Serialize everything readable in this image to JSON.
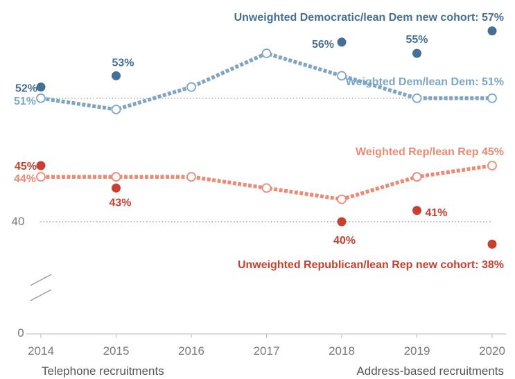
{
  "chart_data": {
    "type": "line",
    "x": [
      2014,
      2015,
      2016,
      2017,
      2018,
      2019,
      2020
    ],
    "xtick_labels": [
      "2014",
      "2015",
      "2016",
      "2017",
      "2018",
      "2019",
      "2020"
    ],
    "ytick_labels": [
      "40",
      "0"
    ],
    "axis_break": true,
    "grid": false,
    "series": [
      {
        "key": "wdem",
        "name": "Weighted Dem/lean Dem: 51%",
        "style": "dashed-line-open-circles",
        "color": "#7ea6c4",
        "values": [
          51,
          50,
          52,
          55,
          53,
          51,
          51
        ],
        "point_labels": [
          {
            "index": 0,
            "text": "51%"
          }
        ]
      },
      {
        "key": "udem",
        "name": "Unweighted Democratic/lean Dem new cohort: 57%",
        "style": "points",
        "color": "#456f93",
        "values": [
          52,
          53,
          null,
          null,
          56,
          55,
          57
        ],
        "point_labels": [
          {
            "index": 0,
            "text": "52%"
          },
          {
            "index": 1,
            "text": "53%"
          },
          {
            "index": 4,
            "text": "56%"
          },
          {
            "index": 5,
            "text": "55%"
          }
        ]
      },
      {
        "key": "wrep",
        "name": "Weighted Rep/lean Rep 45%",
        "style": "dashed-line-open-circles",
        "color": "#ea8b76",
        "values": [
          44,
          44,
          44,
          43,
          42,
          44,
          45
        ],
        "point_labels": [
          {
            "index": 0,
            "text": "44%"
          }
        ]
      },
      {
        "key": "urep",
        "name": "Unweighted Republican/lean Rep new cohort: 38%",
        "style": "points",
        "color": "#c8402f",
        "values": [
          45,
          43,
          null,
          null,
          40,
          41,
          38
        ],
        "point_labels": [
          {
            "index": 0,
            "text": "45%"
          },
          {
            "index": 1,
            "text": "43%"
          },
          {
            "index": 4,
            "text": "40%"
          },
          {
            "index": 5,
            "text": "41%"
          }
        ]
      }
    ],
    "reference_lines": [
      51,
      40
    ],
    "notes": {
      "left": "Telephone recruitments",
      "right": "Address-based recruitments"
    }
  }
}
